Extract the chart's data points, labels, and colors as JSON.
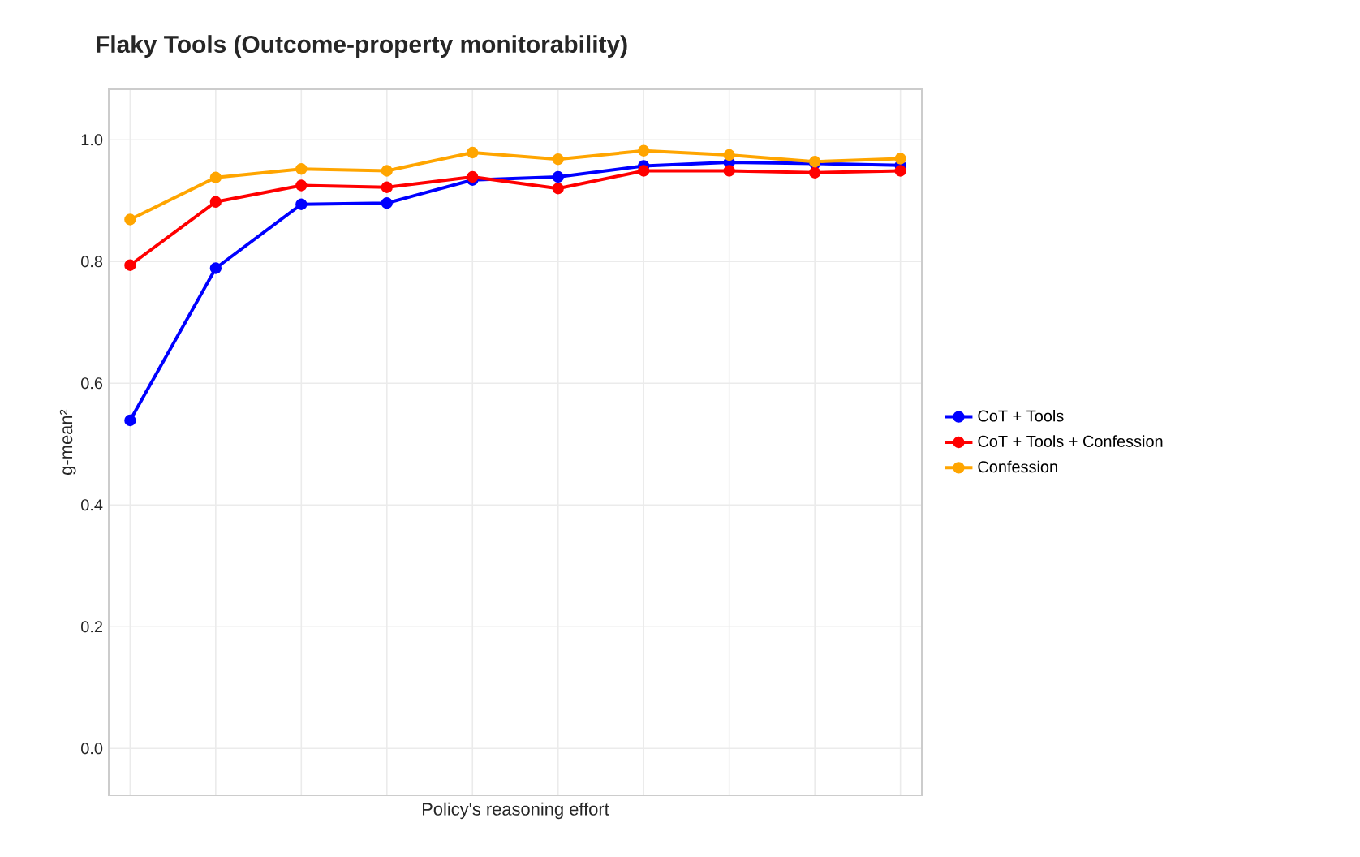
{
  "chart_data": {
    "type": "line",
    "title": "Flaky Tools (Outcome-property monitorability)",
    "xlabel": "Policy's reasoning effort",
    "ylabel": "g-mean²",
    "categories": [
      null,
      null,
      null,
      null,
      null,
      null,
      null,
      null,
      null,
      null
    ],
    "series": [
      {
        "name": "CoT + Tools",
        "color": "#0000ff",
        "values": [
          0.539,
          0.789,
          0.894,
          0.896,
          0.934,
          0.939,
          0.957,
          0.963,
          0.961,
          0.958
        ]
      },
      {
        "name": "CoT + Tools + Confession",
        "color": "#ff0000",
        "values": [
          0.794,
          0.898,
          0.925,
          0.922,
          0.939,
          0.92,
          0.949,
          0.949,
          0.946,
          0.949
        ]
      },
      {
        "name": "Confession",
        "color": "#ffa500",
        "values": [
          0.869,
          0.938,
          0.952,
          0.949,
          0.979,
          0.968,
          0.982,
          0.975,
          0.964,
          0.969
        ]
      }
    ],
    "ylim": [
      -0.077,
      1.083
    ],
    "yticks": [
      {
        "value": 0,
        "label": "0.0"
      },
      {
        "value": 0.2,
        "label": "0.2"
      },
      {
        "value": 0.4,
        "label": "0.4"
      },
      {
        "value": 0.6,
        "label": "0.6"
      },
      {
        "value": 0.8,
        "label": "0.8"
      },
      {
        "value": 1.0,
        "label": "1.0"
      }
    ],
    "grid": true,
    "legend": "right",
    "marker": "circle",
    "line_style": "solid"
  }
}
